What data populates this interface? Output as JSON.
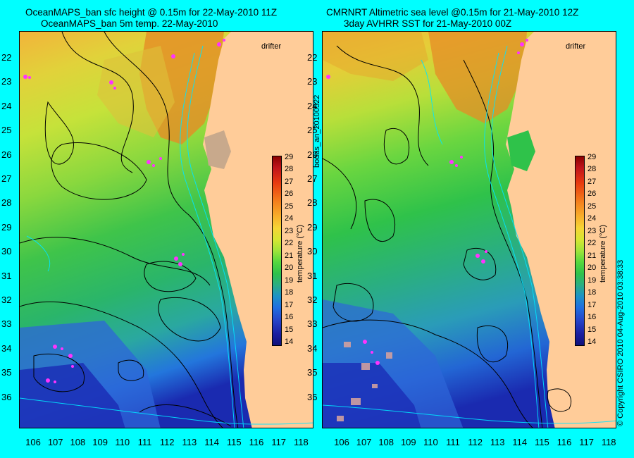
{
  "titles": {
    "left_line1": "OceanMAPS_ban sfc height @ 0.15m for 22-May-2010 11Z",
    "left_line2": "OceanMAPS_ban 5m temp. 22-May-2010",
    "right_line1": "CMRNRT Altimetric sea level  @0.15m  for 21-May-2010 12Z",
    "right_line2": "3day AVHRR SST for 21-May-2010 00Z"
  },
  "lat_labels": [
    "22",
    "23",
    "24",
    "25",
    "26",
    "27",
    "28",
    "29",
    "30",
    "31",
    "32",
    "33",
    "34",
    "35",
    "36"
  ],
  "lon_labels": [
    "106",
    "107",
    "108",
    "109",
    "110",
    "111",
    "112",
    "113",
    "114",
    "115",
    "116",
    "117",
    "118"
  ],
  "drifter_label": "drifter",
  "colorbar": {
    "ticks": [
      "29",
      "28",
      "27",
      "26",
      "25",
      "24",
      "23",
      "22",
      "21",
      "20",
      "19",
      "18",
      "17",
      "16",
      "15",
      "14"
    ],
    "title": "temperature (°C)"
  },
  "side_text_left": "bodas_an_20100522",
  "side_text_right": "© Copyright CSIRO 2010   04-Aug-2010 03:38:33",
  "colors": {
    "background": "#00ffff",
    "land": "#ffcc99",
    "drifter": "#ff33ff"
  }
}
